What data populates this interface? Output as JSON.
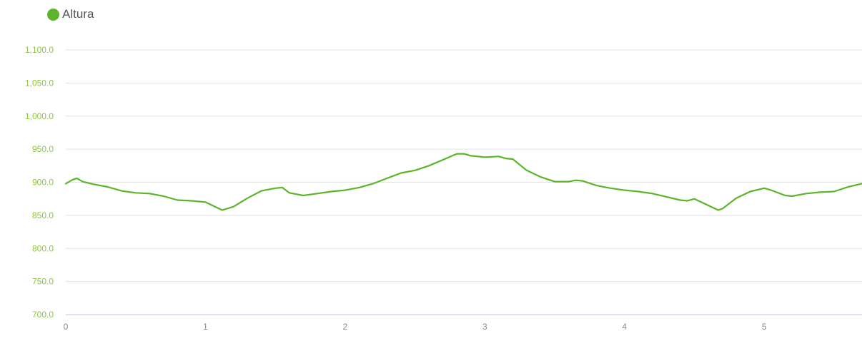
{
  "legend": {
    "label": "Altura"
  },
  "colors": {
    "series": "#5ab52a",
    "tick_label": "#8cc63f",
    "x_tick_label": "#8a8a8a",
    "grid": "#dde3ee",
    "axis": "#b9c6e0"
  },
  "chart_data": {
    "type": "line",
    "title": "",
    "xlabel": "",
    "ylabel": "",
    "xlim": [
      0,
      5.7
    ],
    "ylim": [
      700,
      1100
    ],
    "grid": true,
    "legend_position": "top-left",
    "y_ticks": [
      700,
      750,
      800,
      850,
      900,
      950,
      1000,
      1050,
      1100
    ],
    "y_tick_labels": [
      "700.0",
      "750.0",
      "800.0",
      "850.0",
      "900.0",
      "950.0",
      "1,000.0",
      "1,050.0",
      "1,100.0"
    ],
    "x_ticks": [
      0,
      1,
      2,
      3,
      4,
      5
    ],
    "x_tick_labels": [
      "0",
      "1",
      "2",
      "3",
      "4",
      "5"
    ],
    "series": [
      {
        "name": "Altura",
        "x": [
          0,
          0.05,
          0.08,
          0.12,
          0.2,
          0.3,
          0.4,
          0.5,
          0.6,
          0.7,
          0.8,
          0.9,
          1.0,
          1.05,
          1.12,
          1.2,
          1.3,
          1.4,
          1.5,
          1.55,
          1.6,
          1.7,
          1.8,
          1.9,
          2.0,
          2.1,
          2.2,
          2.3,
          2.35,
          2.4,
          2.5,
          2.6,
          2.7,
          2.8,
          2.85,
          2.9,
          3.0,
          3.1,
          3.15,
          3.2,
          3.3,
          3.4,
          3.5,
          3.6,
          3.65,
          3.7,
          3.8,
          3.9,
          4.0,
          4.1,
          4.2,
          4.3,
          4.4,
          4.45,
          4.5,
          4.6,
          4.67,
          4.7,
          4.8,
          4.9,
          5.0,
          5.05,
          5.15,
          5.2,
          5.3,
          5.4,
          5.5,
          5.6,
          5.7
        ],
        "y": [
          898,
          904,
          906,
          901,
          897,
          893,
          887,
          884,
          883,
          879,
          873,
          872,
          870,
          865,
          858,
          863,
          876,
          887,
          891,
          892,
          884,
          880,
          883,
          886,
          888,
          892,
          898,
          906,
          910,
          914,
          918,
          925,
          934,
          943,
          943,
          940,
          938,
          939,
          936,
          935,
          918,
          908,
          901,
          901,
          903,
          902,
          895,
          891,
          888,
          886,
          883,
          878,
          873,
          872,
          875,
          865,
          858,
          860,
          876,
          886,
          891,
          888,
          880,
          879,
          883,
          885,
          886,
          893,
          898
        ]
      }
    ]
  }
}
